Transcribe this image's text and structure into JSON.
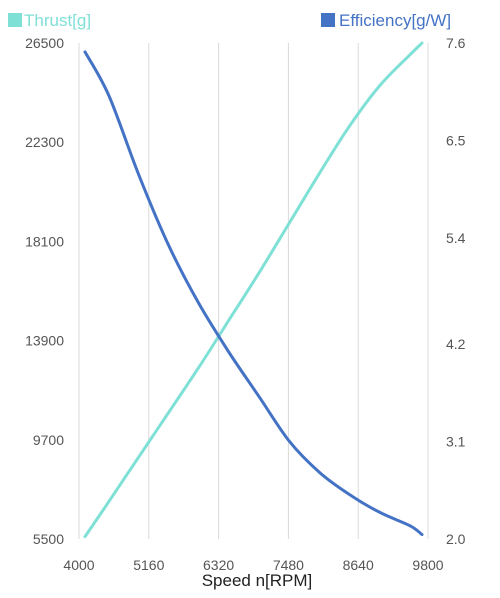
{
  "chart_data": {
    "type": "line",
    "xlabel": "Speed n[RPM]",
    "x_ticks": [
      4000,
      5160,
      6320,
      7480,
      8640,
      9800
    ],
    "xlim": [
      4000,
      9800
    ],
    "y_left": {
      "label": "Thrust[g]",
      "ticks": [
        5500,
        9700,
        13900,
        18100,
        22300,
        26500
      ],
      "lim": [
        5500,
        26500
      ]
    },
    "y_right": {
      "label": "Efficiency[g/W]",
      "ticks": [
        2.0,
        3.1,
        4.2,
        5.4,
        6.5,
        7.6
      ],
      "tick_labels": [
        "2.0",
        "3.1",
        "4.2",
        "5.4",
        "6.5",
        "7.6"
      ],
      "lim": [
        2.0,
        7.6
      ]
    },
    "grid": {
      "vertical": true,
      "horizontal": false
    },
    "legend": "top",
    "series": [
      {
        "name": "Thrust[g]",
        "axis": "left",
        "color": "#7fe0d6",
        "x": [
          4100,
          4500,
          5000,
          5500,
          6000,
          6500,
          7000,
          7500,
          8000,
          8500,
          9000,
          9500,
          9700
        ],
        "y": [
          5600,
          7100,
          9000,
          10900,
          12800,
          14800,
          16800,
          18900,
          21000,
          23000,
          24700,
          26000,
          26500
        ]
      },
      {
        "name": "Efficiency[g/W]",
        "axis": "right",
        "color": "#4472c4",
        "x": [
          4100,
          4500,
          5000,
          5500,
          6000,
          6500,
          7000,
          7500,
          8000,
          8500,
          9000,
          9500,
          9700
        ],
        "y": [
          7.5,
          7.0,
          6.1,
          5.3,
          4.65,
          4.1,
          3.6,
          3.1,
          2.75,
          2.5,
          2.3,
          2.15,
          2.05
        ]
      }
    ]
  }
}
